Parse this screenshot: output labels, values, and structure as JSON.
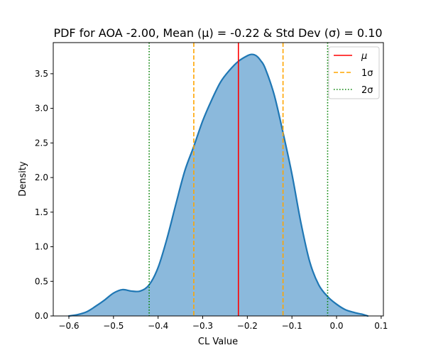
{
  "chart_data": {
    "type": "area",
    "title": "PDF for AOA -2.00, Mean (μ) = -0.22 & Std Dev (σ) = 0.10",
    "xlabel": "CL Value",
    "ylabel": "Density",
    "xlim": [
      -0.635,
      0.105
    ],
    "ylim": [
      0,
      3.95
    ],
    "xticks": [
      -0.6,
      -0.5,
      -0.4,
      -0.3,
      -0.2,
      -0.1,
      0.0,
      0.1
    ],
    "xtick_labels": [
      "−0.6",
      "−0.5",
      "−0.4",
      "−0.3",
      "−0.2",
      "−0.1",
      "0.0",
      "0.1"
    ],
    "yticks": [
      0,
      0.5,
      1.0,
      1.5,
      2.0,
      2.5,
      3.0,
      3.5
    ],
    "ytick_labels": [
      "0.0",
      "0.5",
      "1.0",
      "1.5",
      "2.0",
      "2.5",
      "3.0",
      "3.5"
    ],
    "grid": false,
    "legend_position": "top-right",
    "series": [
      {
        "color": "#1f77b4",
        "fill_color": "#8bb9dc",
        "x": [
          -0.6,
          -0.58,
          -0.56,
          -0.54,
          -0.52,
          -0.5,
          -0.48,
          -0.46,
          -0.44,
          -0.42,
          -0.4,
          -0.38,
          -0.36,
          -0.34,
          -0.32,
          -0.3,
          -0.28,
          -0.26,
          -0.24,
          -0.22,
          -0.2,
          -0.19,
          -0.18,
          -0.17,
          -0.16,
          -0.14,
          -0.12,
          -0.1,
          -0.08,
          -0.06,
          -0.04,
          -0.02,
          0.0,
          0.02,
          0.04,
          0.06,
          0.07
        ],
        "y": [
          0.0,
          0.02,
          0.06,
          0.14,
          0.23,
          0.33,
          0.38,
          0.36,
          0.36,
          0.45,
          0.7,
          1.12,
          1.62,
          2.1,
          2.45,
          2.82,
          3.12,
          3.38,
          3.55,
          3.68,
          3.76,
          3.78,
          3.76,
          3.69,
          3.58,
          3.2,
          2.65,
          2.05,
          1.35,
          0.78,
          0.45,
          0.28,
          0.17,
          0.09,
          0.05,
          0.02,
          0.0
        ]
      }
    ],
    "lines": [
      {
        "label": "μ",
        "x": -0.22,
        "color": "#ff0000",
        "style": "solid"
      },
      {
        "label": "1σ",
        "x": [
          -0.32,
          -0.12
        ],
        "color": "#ffa500",
        "style": "dashed"
      },
      {
        "label": "2σ",
        "x": [
          -0.42,
          -0.02
        ],
        "color": "#008000",
        "style": "dotted"
      }
    ]
  }
}
